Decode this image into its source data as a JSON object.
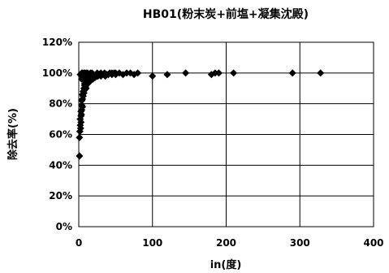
{
  "chart_data": {
    "type": "scatter",
    "title": "HB01(粉末炭+前塩+凝集沈殿)",
    "xlabel": "in(度)",
    "ylabel": "除去率(%)",
    "xlim": [
      0,
      400
    ],
    "ylim": [
      0,
      120
    ],
    "x_ticks": [
      "0",
      "100",
      "200",
      "300",
      "400"
    ],
    "y_ticks": [
      "0%",
      "20%",
      "40%",
      "60%",
      "80%",
      "100%",
      "120%"
    ],
    "grid": "horizontal and vertical",
    "legend": "none",
    "marker": "diamond",
    "series": [
      {
        "x": [
          1,
          1,
          1.5,
          2,
          2,
          2.5,
          3,
          3,
          3,
          3.5,
          4,
          4,
          4,
          5,
          5,
          5,
          6,
          6,
          7,
          7,
          8,
          8,
          9,
          10,
          10,
          11,
          12,
          13,
          14,
          15,
          16,
          17,
          18,
          19,
          20,
          21,
          22,
          24,
          26,
          28,
          30,
          32,
          34,
          36,
          38,
          40,
          42,
          45,
          48,
          50,
          55,
          60,
          65,
          70,
          75,
          80,
          2,
          3,
          4,
          5,
          6,
          7,
          8,
          9,
          10,
          12,
          14,
          16,
          18,
          20,
          25,
          30,
          35,
          40,
          45,
          50,
          4,
          6,
          8,
          10,
          12,
          15,
          20,
          25,
          30,
          8,
          10,
          12,
          15,
          18,
          22,
          100,
          120,
          145,
          180,
          185,
          190,
          210,
          290,
          328
        ],
        "y": [
          46,
          58,
          62,
          66,
          70,
          64,
          68,
          72,
          75,
          73,
          76,
          79,
          82,
          78,
          83,
          86,
          85,
          88,
          87,
          90,
          89,
          92,
          91,
          90,
          93,
          94,
          93,
          95,
          94,
          96,
          95,
          96,
          97,
          96,
          97,
          98,
          97,
          98,
          98,
          99,
          98,
          99,
          99,
          98,
          99,
          99,
          100,
          99,
          100,
          99,
          100,
          99,
          100,
          100,
          99,
          100,
          99,
          99,
          100,
          100,
          99,
          100,
          100,
          99,
          100,
          100,
          99,
          100,
          100,
          99,
          100,
          100,
          100,
          99,
          100,
          100,
          96,
          97,
          95,
          96,
          97,
          98,
          97,
          98,
          99,
          93,
          94,
          95,
          96,
          97,
          98,
          98,
          99,
          100,
          99,
          100,
          100,
          100,
          100,
          100
        ]
      }
    ]
  }
}
